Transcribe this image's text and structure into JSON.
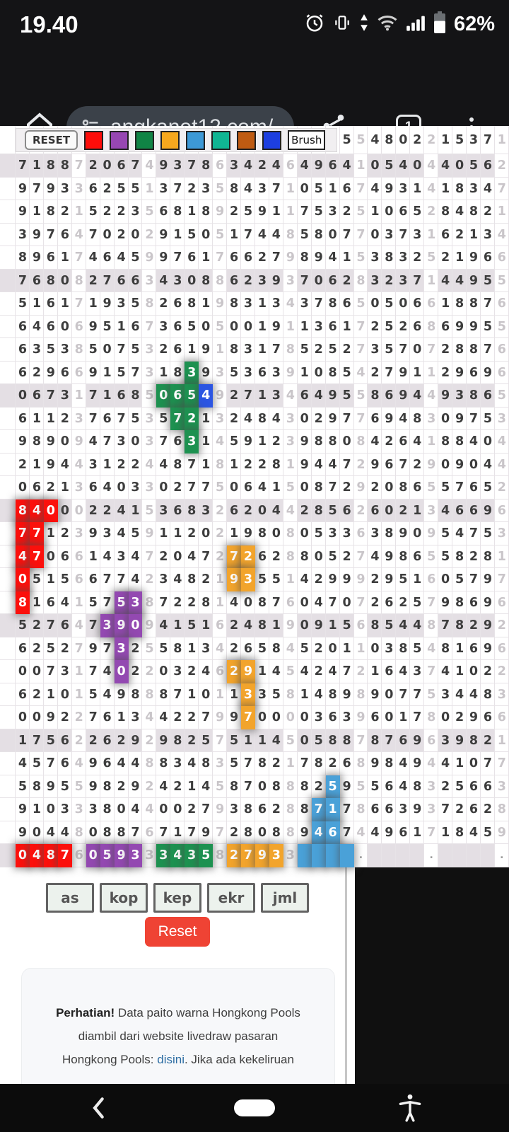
{
  "status_bar": {
    "time": "19.40",
    "battery": "62%"
  },
  "browser": {
    "url": "angkanet12.com/",
    "tab_count": "1"
  },
  "toolbar": {
    "reset": "RESET",
    "brush": "Brush",
    "swatches": [
      {
        "name": "red",
        "color": "#fd0d0a"
      },
      {
        "name": "purple",
        "color": "#9747b2"
      },
      {
        "name": "green",
        "color": "#108445"
      },
      {
        "name": "orange",
        "color": "#f6a81e"
      },
      {
        "name": "sky-blue",
        "color": "#3d99d6"
      },
      {
        "name": "teal",
        "color": "#10b593"
      },
      {
        "name": "chocolate",
        "color": "#bf5b12"
      },
      {
        "name": "blue",
        "color": "#1d3fe0"
      }
    ]
  },
  "paito": {
    "shaded_row_bg": "#e4dfe4",
    "highlight_colors": {
      "R": "#fb100c",
      "P": "#9349b1",
      "G": "#1d9150",
      "O": "#f2a42c",
      "B": "#4aa1d8",
      "N": "#2b55e2"
    },
    "rows": [
      {
        "g": [
          "",
          "",
          "",
          "",
          "   5",
          "4802",
          "1537"
        ],
        "j": [
          "",
          "",
          "",
          "",
          "5",
          "2",
          "1"
        ]
      },
      {
        "g": [
          "7188",
          "2067",
          "9378",
          "3424",
          "4964",
          "0540",
          "4056"
        ],
        "j": [
          "7",
          "4",
          "6",
          "6",
          "1",
          "4",
          "2"
        ],
        "s": true
      },
      {
        "g": [
          "9793",
          "6255",
          "3723",
          "8437",
          "0516",
          "4931",
          "1834"
        ],
        "j": [
          "3",
          "1",
          "5",
          "1",
          "7",
          "4",
          "7"
        ]
      },
      {
        "g": [
          "9182",
          "5223",
          "6818",
          "2591",
          "7532",
          "1065",
          "8482"
        ],
        "j": [
          "1",
          "5",
          "9",
          "1",
          "5",
          "2",
          "1"
        ]
      },
      {
        "g": [
          "3976",
          "7020",
          "9150",
          "1744",
          "5807",
          "0373",
          "6213"
        ],
        "j": [
          "4",
          "2",
          "5",
          "8",
          "7",
          "1",
          "4"
        ]
      },
      {
        "g": [
          "8961",
          "4645",
          "9761",
          "6627",
          "8941",
          "3832",
          "2196"
        ],
        "j": [
          "7",
          "9",
          "7",
          "9",
          "5",
          "5",
          "6"
        ]
      },
      {
        "g": [
          "7680",
          "2766",
          "4308",
          "6239",
          "7062",
          "3237",
          "4495"
        ],
        "j": [
          "8",
          "3",
          "8",
          "3",
          "8",
          "1",
          "5"
        ],
        "s": true
      },
      {
        "g": [
          "5161",
          "1935",
          "2681",
          "8313",
          "3786",
          "0506",
          "1887"
        ],
        "j": [
          "7",
          "8",
          "9",
          "4",
          "5",
          "6",
          "6"
        ]
      },
      {
        "g": [
          "6460",
          "9516",
          "3650",
          "0019",
          "1361",
          "2526",
          "6995"
        ],
        "j": [
          "6",
          "7",
          "5",
          "1",
          "7",
          "8",
          "5"
        ]
      },
      {
        "g": [
          "6353",
          "5075",
          "2619",
          "8317",
          "5252",
          "3570",
          "2887"
        ],
        "j": [
          "8",
          "3",
          "1",
          "8",
          "7",
          "7",
          "6"
        ]
      },
      {
        "g": [
          "6296",
          "9157",
          "1839",
          "5363",
          "1085",
          "2791",
          "2969"
        ],
        "j": [
          "6",
          "3",
          "3",
          "9",
          "4",
          "1",
          "6"
        ],
        "hl": [
          [
            2,
            2,
            "G"
          ]
        ]
      },
      {
        "g": [
          "0673",
          "7168",
          "0654",
          "2713",
          "6495",
          "8694",
          "9386"
        ],
        "j": [
          "1",
          "5",
          "9",
          "4",
          "5",
          "4",
          "5"
        ],
        "s": true,
        "hl": [
          [
            2,
            0,
            "G"
          ],
          [
            2,
            1,
            "G"
          ],
          [
            2,
            2,
            "G"
          ],
          [
            2,
            3,
            "N"
          ]
        ]
      },
      {
        "g": [
          "6112",
          "7675",
          "5721",
          "2484",
          "0297",
          "6948",
          "0975"
        ],
        "j": [
          "3",
          "3",
          "3",
          "3",
          "7",
          "3",
          "3"
        ],
        "hl": [
          [
            2,
            1,
            "G"
          ],
          [
            2,
            2,
            "G"
          ]
        ]
      },
      {
        "g": [
          "9890",
          "4730",
          "7631",
          "5912",
          "9880",
          "4264",
          "8840"
        ],
        "j": [
          "9",
          "3",
          "4",
          "3",
          "8",
          "1",
          "4"
        ],
        "hl": [
          [
            2,
            2,
            "G"
          ]
        ]
      },
      {
        "g": [
          "2194",
          "3122",
          "4871",
          "1228",
          "9447",
          "9672",
          "0904"
        ],
        "j": [
          "4",
          "4",
          "8",
          "1",
          "2",
          "9",
          "4"
        ]
      },
      {
        "g": [
          "0621",
          "6403",
          "0277",
          "0641",
          "0872",
          "2086",
          "5765"
        ],
        "j": [
          "3",
          "3",
          "5",
          "5",
          "9",
          "5",
          "2"
        ]
      },
      {
        "g": [
          "8400",
          "2241",
          "3683",
          "6204",
          "2856",
          "6021",
          "4669"
        ],
        "j": [
          "0",
          "5",
          "2",
          "4",
          "2",
          "3",
          "6"
        ],
        "s": true,
        "hl": [
          [
            0,
            0,
            "R"
          ],
          [
            0,
            1,
            "R"
          ],
          [
            0,
            2,
            "R"
          ]
        ]
      },
      {
        "g": [
          "7712",
          "9345",
          "1120",
          "1980",
          "0533",
          "3890",
          "5475"
        ],
        "j": [
          "3",
          "9",
          "2",
          "8",
          "6",
          "9",
          "3"
        ],
        "hl": [
          [
            0,
            0,
            "R"
          ],
          [
            0,
            1,
            "R"
          ]
        ]
      },
      {
        "g": [
          "4706",
          "1434",
          "2047",
          "7262",
          "8052",
          "4986",
          "5828"
        ],
        "j": [
          "6",
          "7",
          "2",
          "8",
          "7",
          "5",
          "1"
        ],
        "hl": [
          [
            0,
            0,
            "R"
          ],
          [
            0,
            1,
            "R"
          ],
          [
            3,
            0,
            "O"
          ],
          [
            3,
            1,
            "O"
          ]
        ]
      },
      {
        "g": [
          "0515",
          "6774",
          "3482",
          "9355",
          "4299",
          "2951",
          "0579"
        ],
        "j": [
          "6",
          "2",
          "1",
          "1",
          "9",
          "6",
          "7"
        ],
        "hl": [
          [
            0,
            0,
            "R"
          ],
          [
            3,
            0,
            "O"
          ],
          [
            3,
            1,
            "O"
          ]
        ]
      },
      {
        "g": [
          "8164",
          "5753",
          "7228",
          "4087",
          "0470",
          "2625",
          "9869"
        ],
        "j": [
          "1",
          "8",
          "1",
          "6",
          "7",
          "7",
          "6"
        ],
        "hl": [
          [
            0,
            0,
            "R"
          ],
          [
            1,
            2,
            "P"
          ],
          [
            1,
            3,
            "P"
          ]
        ]
      },
      {
        "g": [
          "5276",
          "7390",
          "4151",
          "2481",
          "0915",
          "8544",
          "7829"
        ],
        "j": [
          "4",
          "9",
          "6",
          "9",
          "6",
          "8",
          "2"
        ],
        "s": true,
        "hl": [
          [
            1,
            1,
            "P"
          ],
          [
            1,
            2,
            "P"
          ],
          [
            1,
            3,
            "P"
          ]
        ]
      },
      {
        "g": [
          "6252",
          "9732",
          "5813",
          "2658",
          "5201",
          "0385",
          "8169"
        ],
        "j": [
          "7",
          "5",
          "4",
          "4",
          "1",
          "4",
          "6"
        ],
        "hl": [
          [
            1,
            2,
            "P"
          ]
        ]
      },
      {
        "g": [
          "0073",
          "7402",
          "0324",
          "2914",
          "4247",
          "1643",
          "4102"
        ],
        "j": [
          "1",
          "2",
          "6",
          "5",
          "2",
          "7",
          "2"
        ],
        "hl": [
          [
            1,
            2,
            "P"
          ],
          [
            3,
            0,
            "O"
          ],
          [
            3,
            1,
            "O"
          ]
        ]
      },
      {
        "g": [
          "6210",
          "5498",
          "8710",
          "1335",
          "1489",
          "9077",
          "3448"
        ],
        "j": [
          "1",
          "8",
          "1",
          "8",
          "8",
          "5",
          "3"
        ],
        "hl": [
          [
            3,
            1,
            "O"
          ]
        ]
      },
      {
        "g": [
          "0092",
          "7613",
          "4227",
          "9700",
          "0363",
          "6017",
          "0296"
        ],
        "j": [
          "2",
          "4",
          "9",
          "0",
          "9",
          "8",
          "6"
        ],
        "hl": [
          [
            3,
            1,
            "O"
          ]
        ]
      },
      {
        "g": [
          "1756",
          "2629",
          "9825",
          "5114",
          "0588",
          "8769",
          "3982"
        ],
        "j": [
          "2",
          "2",
          "7",
          "5",
          "7",
          "6",
          "1"
        ],
        "s": true
      },
      {
        "g": [
          "4576",
          "9644",
          "8348",
          "5782",
          "7826",
          "9849",
          "4107"
        ],
        "j": [
          "4",
          "8",
          "3",
          "1",
          "8",
          "4",
          "7"
        ]
      },
      {
        "g": [
          "5895",
          "9829",
          "4214",
          "8708",
          "8259",
          "5648",
          "2566"
        ],
        "j": [
          "5",
          "2",
          "5",
          "8",
          "5",
          "3",
          "3"
        ],
        "hl": [
          [
            4,
            2,
            "B"
          ]
        ]
      },
      {
        "g": [
          "9103",
          "3804",
          "0027",
          "3862",
          "8717",
          "6639",
          "7262"
        ],
        "j": [
          "3",
          "4",
          "9",
          "8",
          "8",
          "3",
          "8"
        ],
        "hl": [
          [
            4,
            1,
            "B"
          ],
          [
            4,
            2,
            "B"
          ]
        ]
      },
      {
        "g": [
          "9044",
          "0887",
          "7179",
          "2808",
          "9467",
          "4961",
          "1845"
        ],
        "j": [
          "8",
          "6",
          "7",
          "8",
          "4",
          "7",
          "9"
        ],
        "hl": [
          [
            4,
            1,
            "B"
          ],
          [
            4,
            2,
            "B"
          ]
        ]
      },
      {
        "g": [
          "0487",
          "0593",
          "3435",
          "2793",
          "",
          "",
          ""
        ],
        "j": [
          "6",
          "3",
          "8",
          "3",
          ".",
          ".",
          "."
        ],
        "s": true,
        "hl": [
          [
            0,
            0,
            "R"
          ],
          [
            0,
            1,
            "R"
          ],
          [
            0,
            2,
            "R"
          ],
          [
            0,
            3,
            "R"
          ],
          [
            1,
            0,
            "P"
          ],
          [
            1,
            1,
            "P"
          ],
          [
            1,
            2,
            "P"
          ],
          [
            1,
            3,
            "P"
          ],
          [
            2,
            0,
            "G"
          ],
          [
            2,
            1,
            "G"
          ],
          [
            2,
            2,
            "G"
          ],
          [
            2,
            3,
            "G"
          ],
          [
            3,
            0,
            "O"
          ],
          [
            3,
            1,
            "O"
          ],
          [
            3,
            2,
            "O"
          ],
          [
            3,
            3,
            "O"
          ],
          [
            4,
            0,
            "B"
          ],
          [
            4,
            1,
            "B"
          ],
          [
            4,
            2,
            "B"
          ],
          [
            4,
            3,
            "B"
          ]
        ]
      }
    ]
  },
  "controls": {
    "filters": [
      "as",
      "kop",
      "kep",
      "ekr",
      "jml"
    ],
    "reset": "Reset"
  },
  "notice": {
    "bold": "Perhatian!",
    "text1": " Data paito warna Hongkong Pools",
    "text2": "diambil dari website livedraw pasaran",
    "text3_pre": "Hongkong Pools: ",
    "text3_link": "disini",
    "text3_post": ". Jika ada kekeliruan"
  }
}
